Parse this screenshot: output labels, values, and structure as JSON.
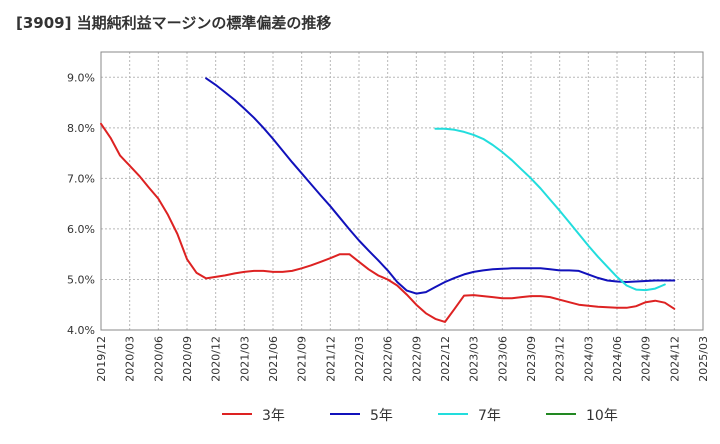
{
  "chart_data": {
    "type": "line",
    "title": "[3909]  当期純利益マージンの標準偏差の推移",
    "xlabel": "",
    "ylabel": "",
    "x_start": "2019/12",
    "x_end": "2025/03",
    "x_ticks": [
      "2019/12",
      "2020/03",
      "2020/06",
      "2020/09",
      "2020/12",
      "2021/03",
      "2021/06",
      "2021/09",
      "2021/12",
      "2022/03",
      "2022/06",
      "2022/09",
      "2022/12",
      "2023/03",
      "2023/06",
      "2023/09",
      "2023/12",
      "2024/03",
      "2024/06",
      "2024/09",
      "2024/12",
      "2025/03"
    ],
    "y_ticks": [
      "4.0%",
      "5.0%",
      "6.0%",
      "7.0%",
      "8.0%",
      "9.0%"
    ],
    "ylim": [
      4.0,
      9.5
    ],
    "grid": true,
    "legend_position": "bottom",
    "series": [
      {
        "name": "3年",
        "color": "#dd2222",
        "points": [
          [
            "2019/12",
            8.08
          ],
          [
            "2020/01",
            7.8
          ],
          [
            "2020/02",
            7.45
          ],
          [
            "2020/03",
            7.25
          ],
          [
            "2020/04",
            7.05
          ],
          [
            "2020/05",
            6.82
          ],
          [
            "2020/06",
            6.6
          ],
          [
            "2020/07",
            6.28
          ],
          [
            "2020/08",
            5.9
          ],
          [
            "2020/09",
            5.4
          ],
          [
            "2020/10",
            5.13
          ],
          [
            "2020/11",
            5.02
          ],
          [
            "2020/12",
            5.05
          ],
          [
            "2021/01",
            5.08
          ],
          [
            "2021/02",
            5.12
          ],
          [
            "2021/03",
            5.15
          ],
          [
            "2021/04",
            5.17
          ],
          [
            "2021/05",
            5.17
          ],
          [
            "2021/06",
            5.15
          ],
          [
            "2021/07",
            5.15
          ],
          [
            "2021/08",
            5.17
          ],
          [
            "2021/09",
            5.22
          ],
          [
            "2021/10",
            5.28
          ],
          [
            "2021/11",
            5.35
          ],
          [
            "2021/12",
            5.42
          ],
          [
            "2022/01",
            5.5
          ],
          [
            "2022/02",
            5.5
          ],
          [
            "2022/03",
            5.35
          ],
          [
            "2022/04",
            5.2
          ],
          [
            "2022/05",
            5.08
          ],
          [
            "2022/06",
            5.0
          ],
          [
            "2022/07",
            4.88
          ],
          [
            "2022/08",
            4.7
          ],
          [
            "2022/09",
            4.5
          ],
          [
            "2022/10",
            4.33
          ],
          [
            "2022/11",
            4.22
          ],
          [
            "2022/12",
            4.16
          ],
          [
            "2023/01",
            4.42
          ],
          [
            "2023/02",
            4.68
          ],
          [
            "2023/03",
            4.69
          ],
          [
            "2023/04",
            4.67
          ],
          [
            "2023/05",
            4.65
          ],
          [
            "2023/06",
            4.63
          ],
          [
            "2023/07",
            4.63
          ],
          [
            "2023/08",
            4.65
          ],
          [
            "2023/09",
            4.67
          ],
          [
            "2023/10",
            4.67
          ],
          [
            "2023/11",
            4.65
          ],
          [
            "2023/12",
            4.6
          ],
          [
            "2024/01",
            4.55
          ],
          [
            "2024/02",
            4.5
          ],
          [
            "2024/03",
            4.48
          ],
          [
            "2024/04",
            4.46
          ],
          [
            "2024/05",
            4.45
          ],
          [
            "2024/06",
            4.44
          ],
          [
            "2024/07",
            4.44
          ],
          [
            "2024/08",
            4.47
          ],
          [
            "2024/09",
            4.55
          ],
          [
            "2024/10",
            4.58
          ],
          [
            "2024/11",
            4.54
          ],
          [
            "2024/12",
            4.42
          ]
        ]
      },
      {
        "name": "5年",
        "color": "#1111bb",
        "points": [
          [
            "2020/11",
            8.98
          ],
          [
            "2020/12",
            8.85
          ],
          [
            "2021/01",
            8.7
          ],
          [
            "2021/02",
            8.55
          ],
          [
            "2021/03",
            8.38
          ],
          [
            "2021/04",
            8.2
          ],
          [
            "2021/05",
            8.0
          ],
          [
            "2021/06",
            7.78
          ],
          [
            "2021/07",
            7.55
          ],
          [
            "2021/08",
            7.32
          ],
          [
            "2021/09",
            7.1
          ],
          [
            "2021/10",
            6.88
          ],
          [
            "2021/11",
            6.66
          ],
          [
            "2021/12",
            6.45
          ],
          [
            "2022/01",
            6.22
          ],
          [
            "2022/02",
            5.99
          ],
          [
            "2022/03",
            5.77
          ],
          [
            "2022/04",
            5.57
          ],
          [
            "2022/05",
            5.38
          ],
          [
            "2022/06",
            5.18
          ],
          [
            "2022/07",
            4.95
          ],
          [
            "2022/08",
            4.78
          ],
          [
            "2022/09",
            4.72
          ],
          [
            "2022/10",
            4.75
          ],
          [
            "2022/11",
            4.85
          ],
          [
            "2022/12",
            4.95
          ],
          [
            "2023/01",
            5.03
          ],
          [
            "2023/02",
            5.1
          ],
          [
            "2023/03",
            5.15
          ],
          [
            "2023/04",
            5.18
          ],
          [
            "2023/05",
            5.2
          ],
          [
            "2023/06",
            5.21
          ],
          [
            "2023/07",
            5.22
          ],
          [
            "2023/08",
            5.22
          ],
          [
            "2023/09",
            5.22
          ],
          [
            "2023/10",
            5.22
          ],
          [
            "2023/11",
            5.2
          ],
          [
            "2023/12",
            5.18
          ],
          [
            "2024/01",
            5.18
          ],
          [
            "2024/02",
            5.17
          ],
          [
            "2024/03",
            5.1
          ],
          [
            "2024/04",
            5.03
          ],
          [
            "2024/05",
            4.98
          ],
          [
            "2024/06",
            4.96
          ],
          [
            "2024/07",
            4.95
          ],
          [
            "2024/08",
            4.96
          ],
          [
            "2024/09",
            4.97
          ],
          [
            "2024/10",
            4.98
          ],
          [
            "2024/11",
            4.98
          ],
          [
            "2024/12",
            4.98
          ]
        ]
      },
      {
        "name": "7年",
        "color": "#22dddd",
        "points": [
          [
            "2022/11",
            7.98
          ],
          [
            "2022/12",
            7.98
          ],
          [
            "2023/01",
            7.96
          ],
          [
            "2023/02",
            7.92
          ],
          [
            "2023/03",
            7.86
          ],
          [
            "2023/04",
            7.78
          ],
          [
            "2023/05",
            7.66
          ],
          [
            "2023/06",
            7.52
          ],
          [
            "2023/07",
            7.36
          ],
          [
            "2023/08",
            7.18
          ],
          [
            "2023/09",
            7.0
          ],
          [
            "2023/10",
            6.8
          ],
          [
            "2023/11",
            6.58
          ],
          [
            "2023/12",
            6.36
          ],
          [
            "2024/01",
            6.13
          ],
          [
            "2024/02",
            5.9
          ],
          [
            "2024/03",
            5.67
          ],
          [
            "2024/04",
            5.45
          ],
          [
            "2024/05",
            5.25
          ],
          [
            "2024/06",
            5.05
          ],
          [
            "2024/07",
            4.88
          ],
          [
            "2024/08",
            4.8
          ],
          [
            "2024/09",
            4.79
          ],
          [
            "2024/10",
            4.82
          ],
          [
            "2024/11",
            4.9
          ]
        ]
      },
      {
        "name": "10年",
        "color": "#228822",
        "points": []
      }
    ]
  }
}
